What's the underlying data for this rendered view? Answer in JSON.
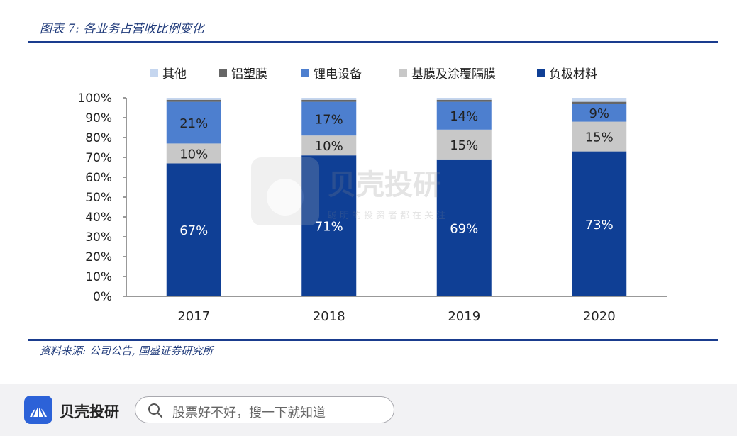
{
  "figure_title": "图表 7:  各业务占营收比例变化",
  "source_note": "资料来源:  公司公告,  国盛证券研究所",
  "watermark": {
    "brand": "贝壳投研",
    "slogan": "聪明的投资者都在关注"
  },
  "bottom_bar": {
    "brand": "贝壳投研",
    "search_placeholder": "股票好不好，搜一下就知道",
    "logo_icon": "shell-logo-icon",
    "search_icon": "magnifier-icon"
  },
  "chart_data": {
    "type": "bar",
    "stacked": true,
    "categories": [
      "2017",
      "2018",
      "2019",
      "2020"
    ],
    "ylim": [
      0,
      100
    ],
    "yticks": [
      "0%",
      "10%",
      "20%",
      "30%",
      "40%",
      "50%",
      "60%",
      "70%",
      "80%",
      "90%",
      "100%"
    ],
    "legend_position": "top",
    "grid": false,
    "series": [
      {
        "name": "负极材料",
        "color": "#0f3f95",
        "values": [
          67,
          71,
          69,
          73
        ],
        "labels": [
          "67%",
          "71%",
          "69%",
          "73%"
        ]
      },
      {
        "name": "基膜及涂覆隔膜",
        "color": "#c8c8c8",
        "values": [
          10,
          10,
          15,
          15
        ],
        "labels": [
          "10%",
          "10%",
          "15%",
          "15%"
        ]
      },
      {
        "name": "锂电设备",
        "color": "#4d7fcf",
        "values": [
          21,
          17,
          14,
          9
        ],
        "labels": [
          "21%",
          "17%",
          "14%",
          "9%"
        ]
      },
      {
        "name": "铝塑膜",
        "color": "#666666",
        "values": [
          1,
          1,
          1,
          1
        ],
        "labels": [
          "",
          "",
          "",
          ""
        ]
      },
      {
        "name": "其他",
        "color": "#c5d6ef",
        "values": [
          1,
          1,
          1,
          2
        ],
        "labels": [
          "",
          "",
          "",
          ""
        ]
      }
    ],
    "legend_order": [
      4,
      3,
      2,
      1,
      0
    ]
  }
}
